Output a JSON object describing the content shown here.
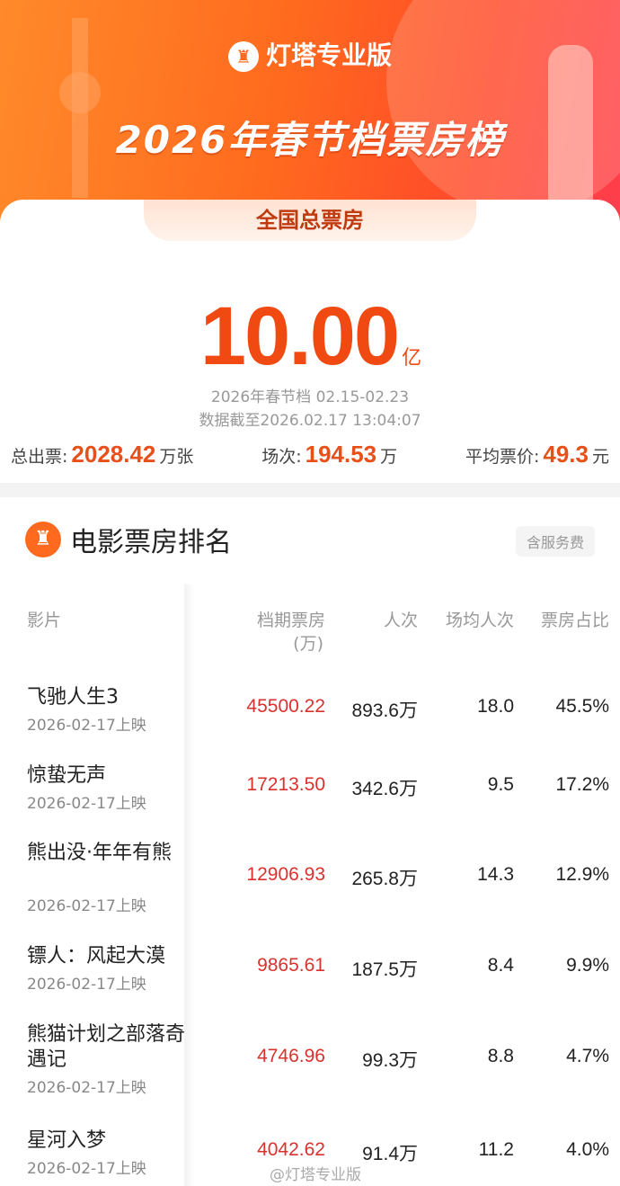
{
  "header": {
    "brand": "灯塔专业版",
    "title": "2026年春节档票房榜",
    "brand_color": "#ff6a1e"
  },
  "summary": {
    "tab": "全国总票房",
    "total": "10.00",
    "total_unit": "亿",
    "period": "2026年春节档 02.15-02.23",
    "updated": "数据截至2026.02.17 13:04:07",
    "tickets_label": "总出票:",
    "tickets": "2028.42",
    "tickets_unit": "万张",
    "shows_label": "场次:",
    "shows": "194.53",
    "shows_unit": "万",
    "price_label": "平均票价:",
    "price": "49.3",
    "price_unit": "元"
  },
  "ranking": {
    "title": "电影票房排名",
    "badge": "含服务费",
    "columns": {
      "film": "影片",
      "box": "档期票房",
      "box_unit": "(万)",
      "audience": "人次",
      "avg": "场均人次",
      "share": "票房占比"
    },
    "rows": [
      {
        "name": "飞驰人生3",
        "date": "2026-02-17上映",
        "box": "45500.22",
        "audience": "893.6万",
        "avg": "18.0",
        "share": "45.5%"
      },
      {
        "name": "惊蛰无声",
        "date": "2026-02-17上映",
        "box": "17213.50",
        "audience": "342.6万",
        "avg": "9.5",
        "share": "17.2%"
      },
      {
        "name": "熊出没·年年有熊",
        "date": "2026-02-17上映",
        "box": "12906.93",
        "audience": "265.8万",
        "avg": "14.3",
        "share": "12.9%"
      },
      {
        "name": "镖人：风起大漠",
        "date": "2026-02-17上映",
        "box": "9865.61",
        "audience": "187.5万",
        "avg": "8.4",
        "share": "9.9%"
      },
      {
        "name": "熊猫计划之部落奇遇记",
        "date": "2026-02-17上映",
        "box": "4746.96",
        "audience": "99.3万",
        "avg": "8.8",
        "share": "4.7%"
      },
      {
        "name": "星河入梦",
        "date": "2026-02-17上映",
        "box": "4042.62",
        "audience": "91.4万",
        "avg": "11.2",
        "share": "4.0%"
      }
    ]
  },
  "watermark": "@灯塔专业版"
}
